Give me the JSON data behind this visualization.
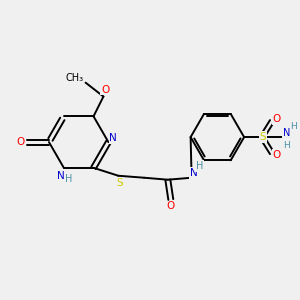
{
  "bg_color": "#f0f0f0",
  "atom_colors": {
    "C": "#000000",
    "N": "#0000cc",
    "O": "#ff0000",
    "S": "#cccc00",
    "H": "#4a8fa8"
  },
  "bond_color": "#000000",
  "figsize": [
    3.0,
    3.0
  ],
  "dpi": 100
}
